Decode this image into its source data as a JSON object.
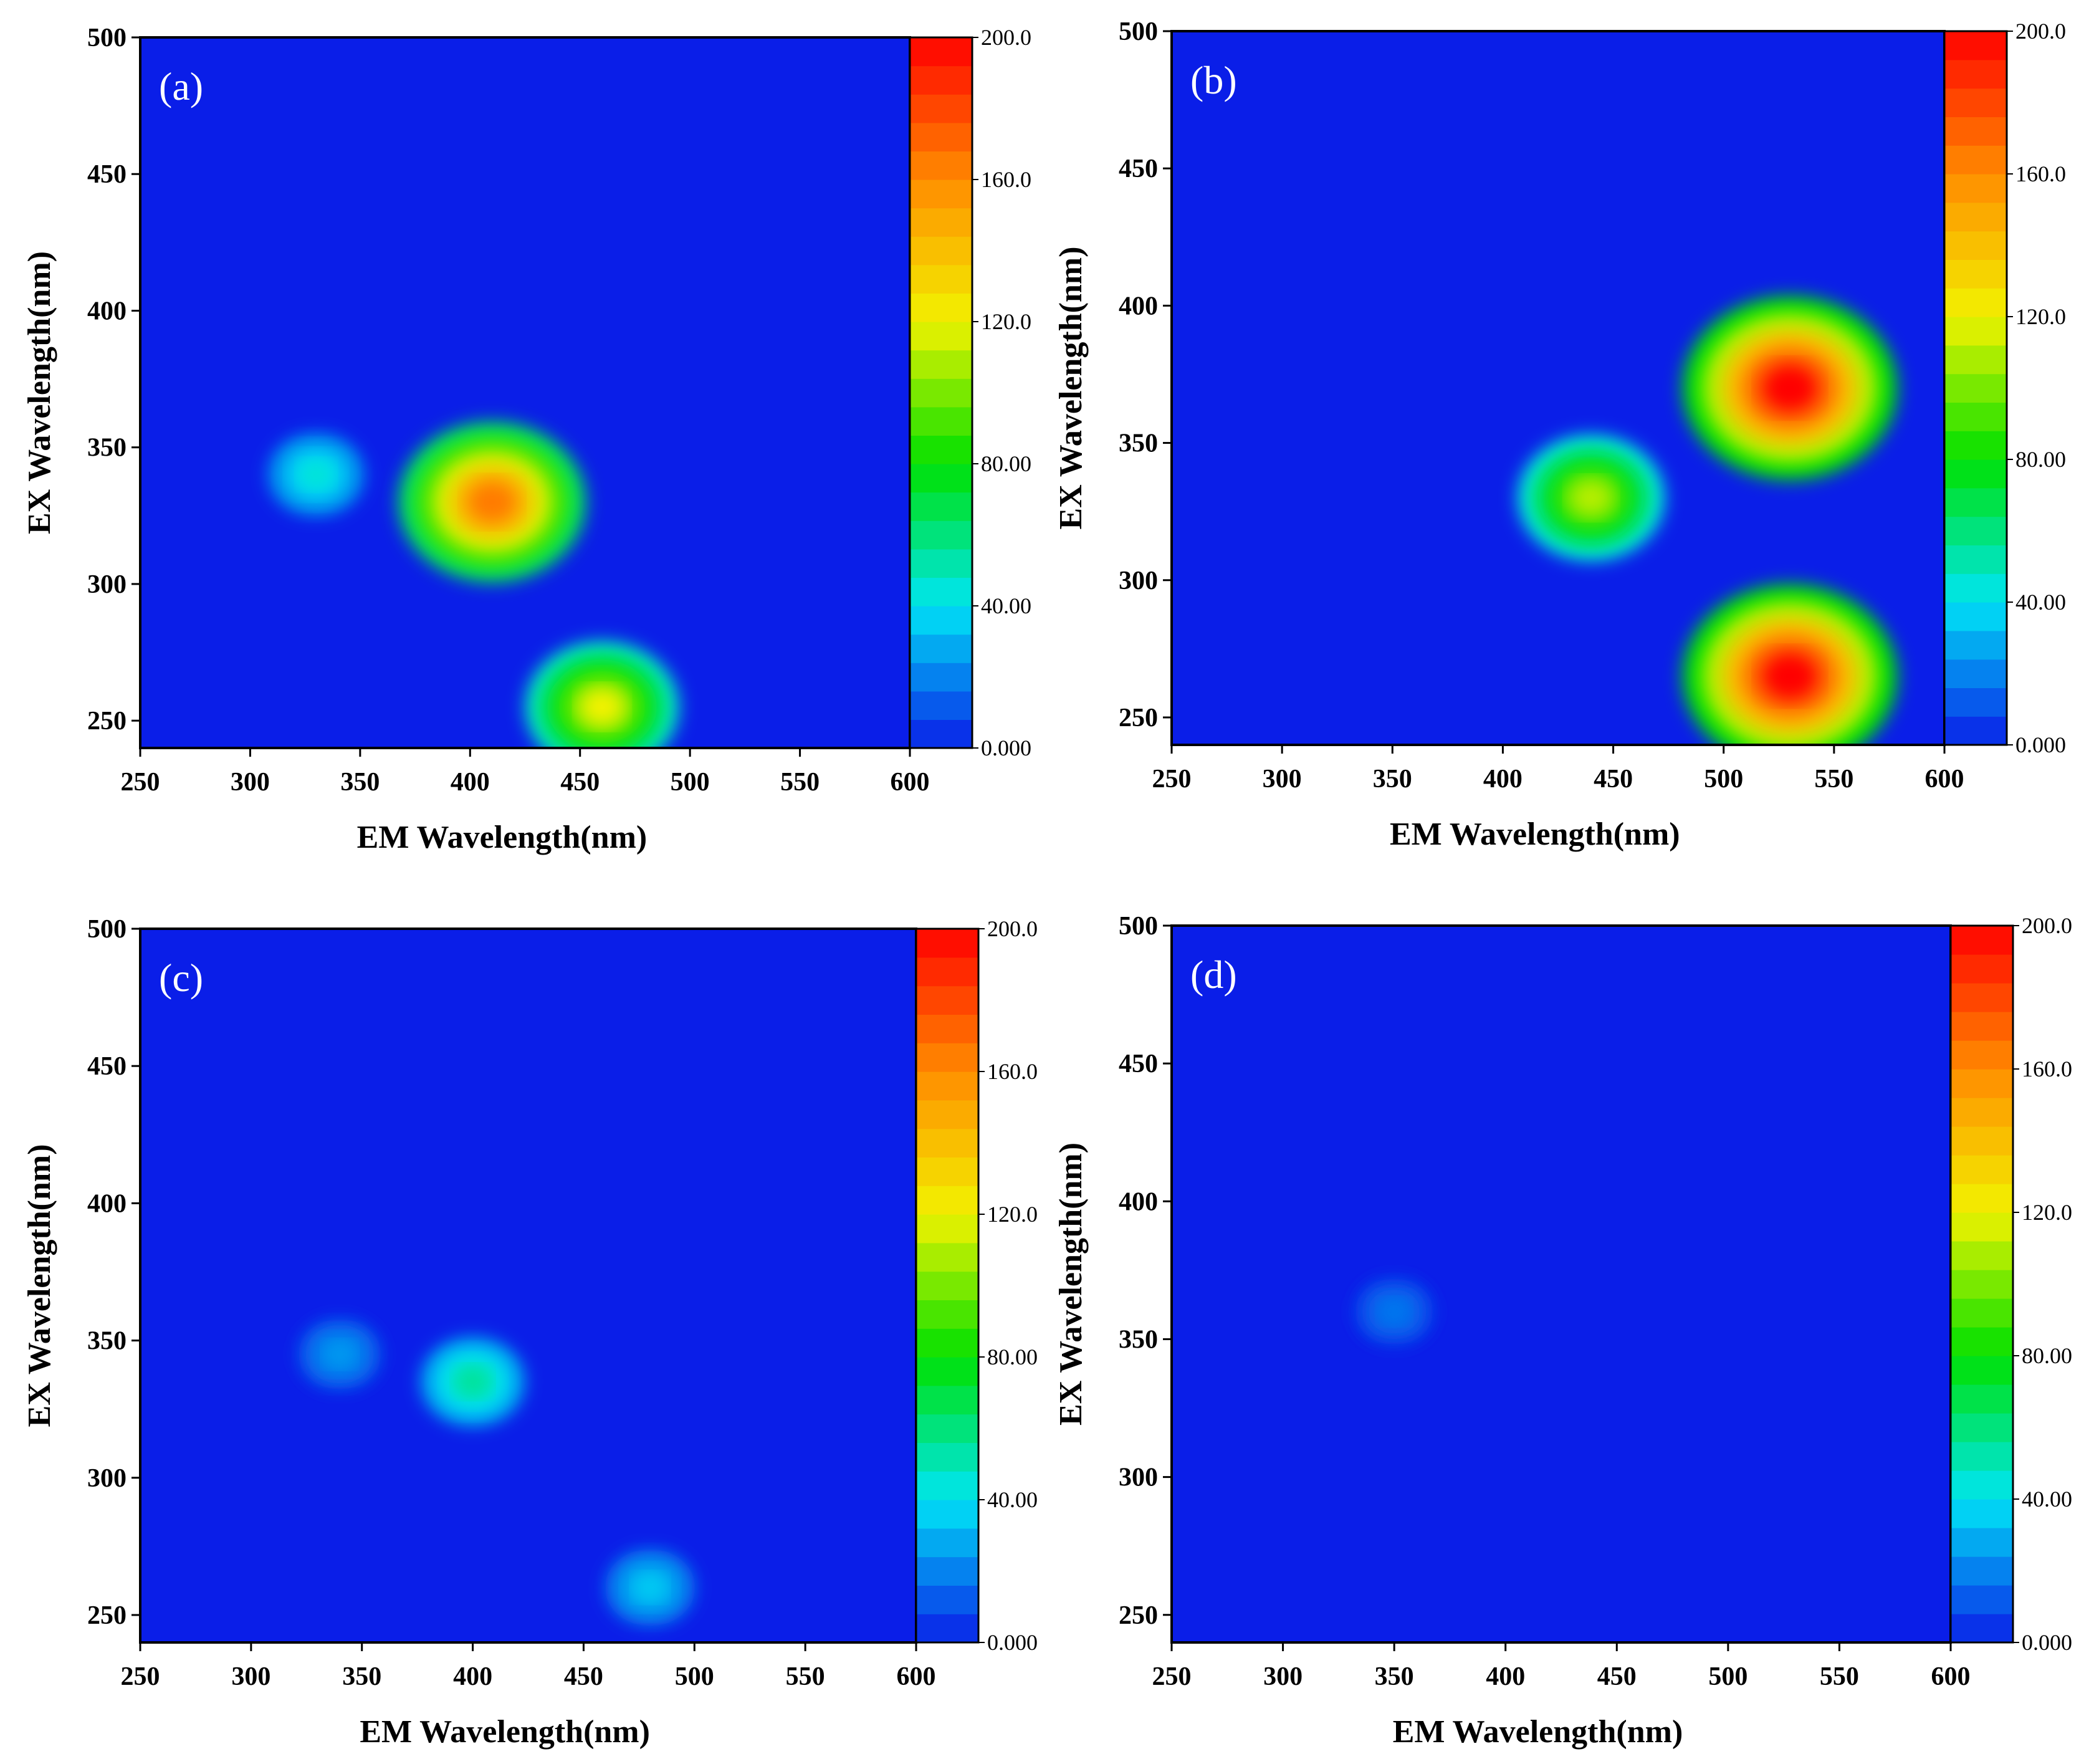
{
  "chart_data": [
    {
      "type": "heatmap",
      "panel_label": "(a)",
      "xlabel": "EM Wavelength(nm)",
      "ylabel": "EX Wavelength(nm)",
      "xlim": [
        250,
        600
      ],
      "ylim": [
        240,
        500
      ],
      "xticks": [
        "250",
        "300",
        "350",
        "400",
        "450",
        "500",
        "550",
        "600"
      ],
      "yticks": [
        "250",
        "300",
        "350",
        "400",
        "450",
        "500"
      ],
      "colorbar": {
        "range": [
          0,
          200
        ],
        "ticks": [
          "0.000",
          "40.00",
          "80.00",
          "120.0",
          "160.0",
          "200.0"
        ]
      },
      "peaks": [
        {
          "em": 410,
          "ex": 330,
          "intensity": 165
        },
        {
          "em": 460,
          "ex": 255,
          "intensity": 120
        },
        {
          "em": 330,
          "ex": 340,
          "intensity": 45
        }
      ]
    },
    {
      "type": "heatmap",
      "panel_label": "(b)",
      "xlabel": "EM Wavelength(nm)",
      "ylabel": "EX Wavelength(nm)",
      "xlim": [
        250,
        600
      ],
      "ylim": [
        240,
        500
      ],
      "xticks": [
        "250",
        "300",
        "350",
        "400",
        "450",
        "500",
        "550",
        "600"
      ],
      "yticks": [
        "250",
        "300",
        "350",
        "400",
        "450",
        "500"
      ],
      "colorbar": {
        "range": [
          0,
          200
        ],
        "ticks": [
          "0.000",
          "40.00",
          "80.00",
          "120.0",
          "160.0",
          "200.0"
        ]
      },
      "peaks": [
        {
          "em": 530,
          "ex": 370,
          "intensity": 200
        },
        {
          "em": 530,
          "ex": 265,
          "intensity": 200
        },
        {
          "em": 440,
          "ex": 330,
          "intensity": 110
        }
      ]
    },
    {
      "type": "heatmap",
      "panel_label": "(c)",
      "xlabel": "EM Wavelength(nm)",
      "ylabel": "EX Wavelength(nm)",
      "xlim": [
        250,
        600
      ],
      "ylim": [
        240,
        500
      ],
      "xticks": [
        "250",
        "300",
        "350",
        "400",
        "450",
        "500",
        "550",
        "600"
      ],
      "yticks": [
        "250",
        "300",
        "350",
        "400",
        "450",
        "500"
      ],
      "colorbar": {
        "range": [
          0,
          200
        ],
        "ticks": [
          "0.000",
          "40.00",
          "80.00",
          "120.0",
          "160.0",
          "200.0"
        ]
      },
      "peaks": [
        {
          "em": 400,
          "ex": 335,
          "intensity": 55
        },
        {
          "em": 480,
          "ex": 260,
          "intensity": 35
        },
        {
          "em": 340,
          "ex": 345,
          "intensity": 25
        }
      ]
    },
    {
      "type": "heatmap",
      "panel_label": "(d)",
      "xlabel": "EM Wavelength(nm)",
      "ylabel": "EX Wavelength(nm)",
      "xlim": [
        250,
        600
      ],
      "ylim": [
        240,
        500
      ],
      "xticks": [
        "250",
        "300",
        "350",
        "400",
        "450",
        "500",
        "550",
        "600"
      ],
      "yticks": [
        "250",
        "300",
        "350",
        "400",
        "450",
        "500"
      ],
      "colorbar": {
        "range": [
          0,
          200
        ],
        "ticks": [
          "0.000",
          "40.00",
          "80.00",
          "120.0",
          "160.0",
          "200.0"
        ]
      },
      "peaks": [
        {
          "em": 350,
          "ex": 360,
          "intensity": 18
        }
      ]
    }
  ],
  "colors": {
    "background_blue": "#0a1ee8",
    "scale": [
      "#0a1ee8",
      "#00e5f5",
      "#00e000",
      "#f2f200",
      "#ff8c00",
      "#ff0000"
    ]
  }
}
